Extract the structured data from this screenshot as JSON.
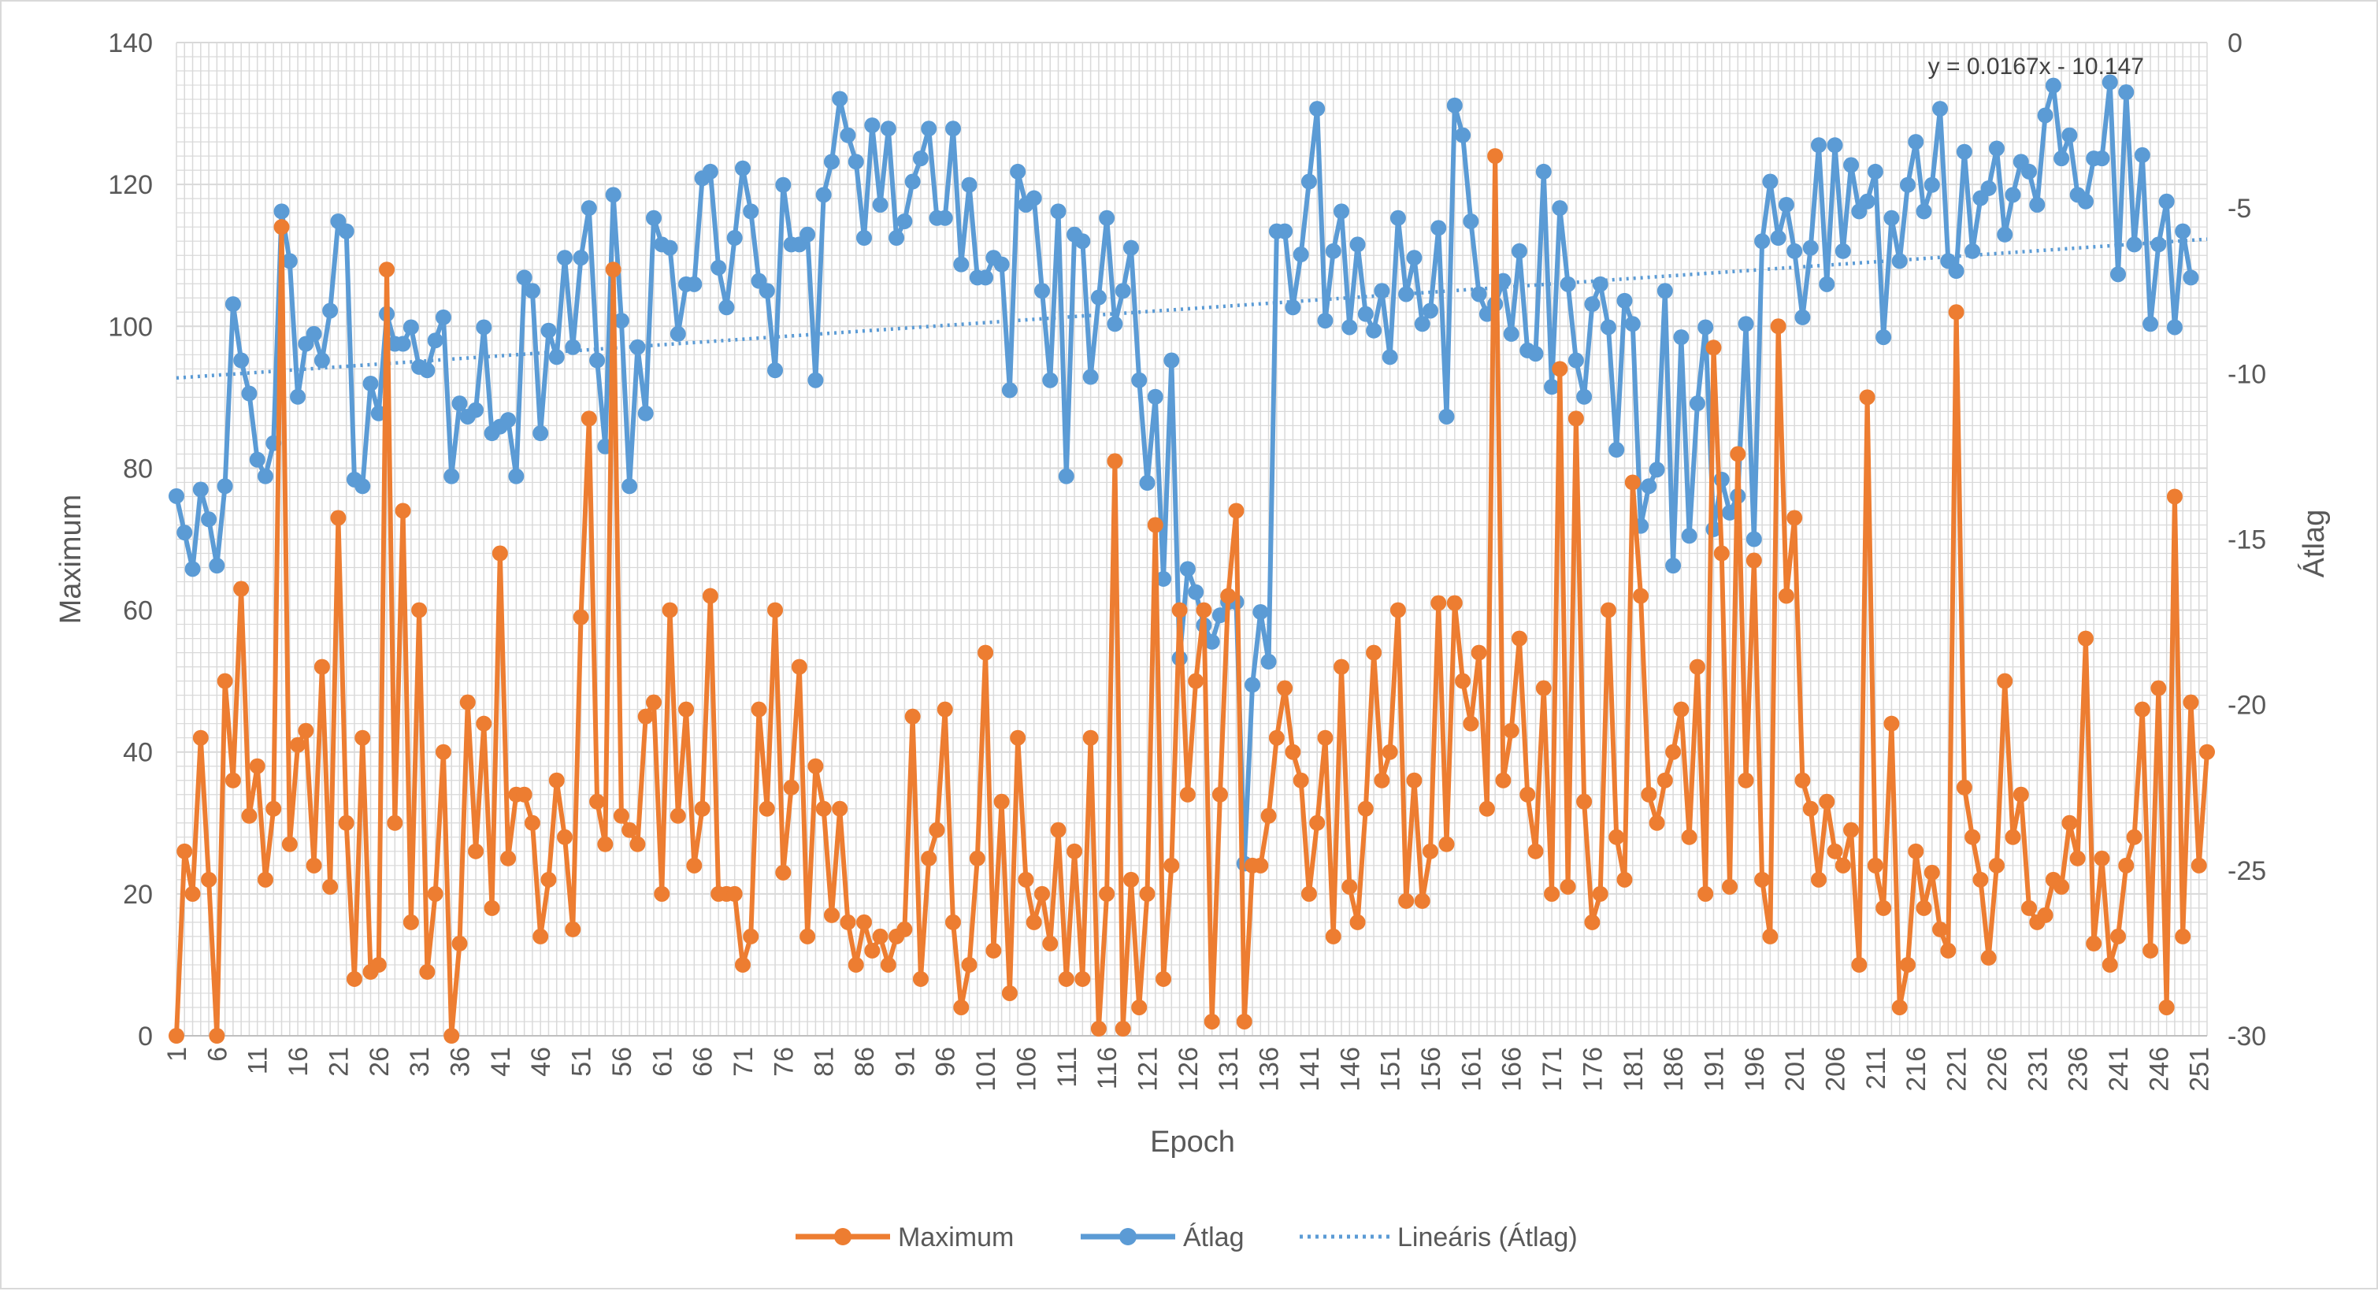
{
  "chart_data": {
    "type": "line",
    "xlabel": "Epoch",
    "ylabel": "Maximum",
    "y2label": "Átlag",
    "ylim": [
      0,
      140
    ],
    "y2lim": [
      -30,
      0
    ],
    "yticks": [
      "0",
      "20",
      "40",
      "60",
      "80",
      "100",
      "120",
      "140"
    ],
    "y2ticks": [
      "-30",
      "-25",
      "-20",
      "-15",
      "-10",
      "-5",
      "0"
    ],
    "xtick_labels": [
      "1",
      "6",
      "11",
      "16",
      "21",
      "26",
      "31",
      "36",
      "41",
      "46",
      "51",
      "56",
      "61",
      "66",
      "71",
      "76",
      "81",
      "86",
      "91",
      "96",
      "101",
      "106",
      "111",
      "116",
      "121",
      "126",
      "131",
      "136",
      "141",
      "146",
      "151",
      "156",
      "161",
      "166",
      "171",
      "176",
      "181",
      "186",
      "191",
      "196",
      "201",
      "206",
      "211",
      "216",
      "221",
      "226",
      "231",
      "236",
      "241",
      "246",
      "251"
    ],
    "x_range": [
      1,
      252
    ],
    "grid": true,
    "legend_position": "bottom",
    "trendline_equation": "y = 0.0167x - 10.147",
    "trendline": {
      "slope": 0.0167,
      "intercept": -10.147,
      "axis": "secondary"
    },
    "colors": {
      "maximum": "#ED7D31",
      "atlag": "#5B9BD5",
      "trend": "#5B9BD5",
      "grid": "#d9d9d9"
    },
    "series": [
      {
        "name": "Maximum",
        "axis": "primary",
        "values": [
          0,
          26,
          20,
          42,
          22,
          0,
          50,
          36,
          63,
          31,
          38,
          22,
          32,
          114,
          27,
          41,
          43,
          24,
          52,
          21,
          73,
          30,
          8,
          42,
          9,
          10,
          108,
          30,
          74,
          16,
          60,
          9,
          20,
          40,
          0,
          13,
          47,
          26,
          44,
          18,
          68,
          25,
          34,
          34,
          30,
          14,
          22,
          36,
          28,
          15,
          59,
          87,
          33,
          27,
          108,
          31,
          29,
          27,
          45,
          47,
          20,
          60,
          31,
          46,
          24,
          32,
          62,
          20,
          20,
          20,
          10,
          14,
          46,
          32,
          60,
          23,
          35,
          52,
          14,
          38,
          32,
          17,
          32,
          16,
          10,
          16,
          12,
          14,
          10,
          14,
          15,
          45,
          8,
          25,
          29,
          46,
          16,
          4,
          10,
          25,
          54,
          12,
          33,
          6,
          42,
          22,
          16,
          20,
          13,
          29,
          8,
          26,
          8,
          42,
          1,
          20,
          81,
          1,
          22,
          4,
          20,
          72,
          8,
          24,
          60,
          34,
          50,
          60,
          2,
          34,
          62,
          74,
          2,
          24,
          24,
          31,
          42,
          49,
          40,
          36,
          20,
          30,
          42,
          14,
          52,
          21,
          16,
          32,
          54,
          36,
          40,
          60,
          19,
          36,
          19,
          26,
          61,
          27,
          61,
          50,
          44,
          54,
          32,
          124,
          36,
          43,
          56,
          34,
          26,
          49,
          20,
          94,
          21,
          87,
          33,
          16,
          20,
          60,
          28,
          22,
          78,
          62,
          34,
          30,
          36,
          40,
          46,
          28,
          52,
          20,
          97,
          68,
          21,
          82,
          36,
          67,
          22,
          14,
          100,
          62,
          73,
          36,
          32,
          22,
          33,
          26,
          24,
          29,
          10,
          90,
          24,
          18,
          44,
          4,
          10,
          26,
          18,
          23,
          15,
          12,
          102,
          35,
          28,
          22,
          11,
          24,
          50,
          28,
          34,
          18,
          16,
          17,
          22,
          21,
          30,
          25,
          56,
          13,
          25,
          10,
          14,
          24,
          28,
          46,
          12,
          49,
          4,
          76,
          14,
          47,
          24,
          40
        ]
      },
      {
        "name": "Átlag",
        "axis": "secondary",
        "values": [
          -13.7,
          -14.8,
          -15.9,
          -13.5,
          -14.4,
          -15.8,
          -13.4,
          -7.9,
          -9.6,
          -10.6,
          -12.6,
          -13.1,
          -12.1,
          -5.1,
          -6.6,
          -10.7,
          -9.1,
          -8.8,
          -9.6,
          -8.1,
          -5.4,
          -5.7,
          -13.2,
          -13.4,
          -10.3,
          -11.2,
          -8.2,
          -9.1,
          -9.1,
          -8.6,
          -9.8,
          -9.9,
          -9,
          -8.3,
          -13.1,
          -10.9,
          -11.3,
          -11.1,
          -8.6,
          -11.8,
          -11.6,
          -11.4,
          -13.1,
          -7.1,
          -7.5,
          -11.8,
          -8.7,
          -9.5,
          -6.5,
          -9.2,
          -6.5,
          -5,
          -9.6,
          -12.2,
          -4.6,
          -8.4,
          -13.4,
          -9.2,
          -11.2,
          -5.3,
          -6.1,
          -6.2,
          -8.8,
          -7.3,
          -7.3,
          -4.1,
          -3.9,
          -6.8,
          -8,
          -5.9,
          -3.8,
          -5.1,
          -7.2,
          -7.5,
          -9.9,
          -4.3,
          -6.1,
          -6.1,
          -5.8,
          -10.2,
          -4.6,
          -3.6,
          -1.7,
          -2.8,
          -3.6,
          -5.9,
          -2.5,
          -4.9,
          -2.6,
          -5.9,
          -5.4,
          -4.2,
          -3.5,
          -2.6,
          -5.3,
          -5.3,
          -2.6,
          -6.7,
          -4.3,
          -7.1,
          -7.1,
          -6.5,
          -6.7,
          -10.5,
          -3.9,
          -4.9,
          -4.7,
          -7.5,
          -10.2,
          -5.1,
          -13.1,
          -5.8,
          -6,
          -10.1,
          -7.7,
          -5.3,
          -8.5,
          -7.5,
          -6.2,
          -10.2,
          -13.3,
          -10.7,
          -16.2,
          -9.6,
          -18.6,
          -15.9,
          -16.6,
          -17.6,
          -18.1,
          -17.3,
          -16.9,
          -16.9,
          -24.8,
          -19.4,
          -17.2,
          -18.7,
          -5.7,
          -5.7,
          -8.0,
          -6.4,
          -4.2,
          -2,
          -8.4,
          -6.3,
          -5.1,
          -8.6,
          -6.1,
          -8.2,
          -8.7,
          -7.5,
          -9.5,
          -5.3,
          -7.6,
          -6.5,
          -8.5,
          -8.1,
          -5.6,
          -11.3,
          -1.9,
          -2.8,
          -5.4,
          -7.6,
          -8.2,
          -7.9,
          -7.2,
          -8.8,
          -6.3,
          -9.3,
          -9.4,
          -3.9,
          -10.4,
          -5,
          -7.3,
          -9.6,
          -10.7,
          -7.9,
          -7.3,
          -8.6,
          -12.3,
          -7.8,
          -8.5,
          -14.6,
          -13.4,
          -12.9,
          -7.5,
          -15.8,
          -8.9,
          -14.9,
          -10.9,
          -8.6,
          -14.7,
          -13.2,
          -14.2,
          -13.7,
          -8.5,
          -15,
          -6,
          -4.2,
          -5.9,
          -4.9,
          -6.3,
          -8.3,
          -6.2,
          -3.1,
          -7.3,
          -3.1,
          -6.3,
          -3.7,
          -5.1,
          -4.8,
          -3.9,
          -8.9,
          -5.3,
          -6.6,
          -4.3,
          -3,
          -5.1,
          -4.3,
          -2,
          -6.6,
          -6.9,
          -3.3,
          -6.3,
          -4.7,
          -4.4,
          -3.2,
          -5.8,
          -4.6,
          -3.6,
          -3.9,
          -4.9,
          -2.2,
          -1.3,
          -3.5,
          -2.8,
          -4.6,
          -4.8,
          -3.5,
          -3.5,
          -1.2,
          -7,
          -1.5,
          -6.1,
          -3.4,
          -8.5,
          -6.1,
          -4.8,
          -8.6,
          -5.7,
          -7.1
        ]
      }
    ]
  }
}
